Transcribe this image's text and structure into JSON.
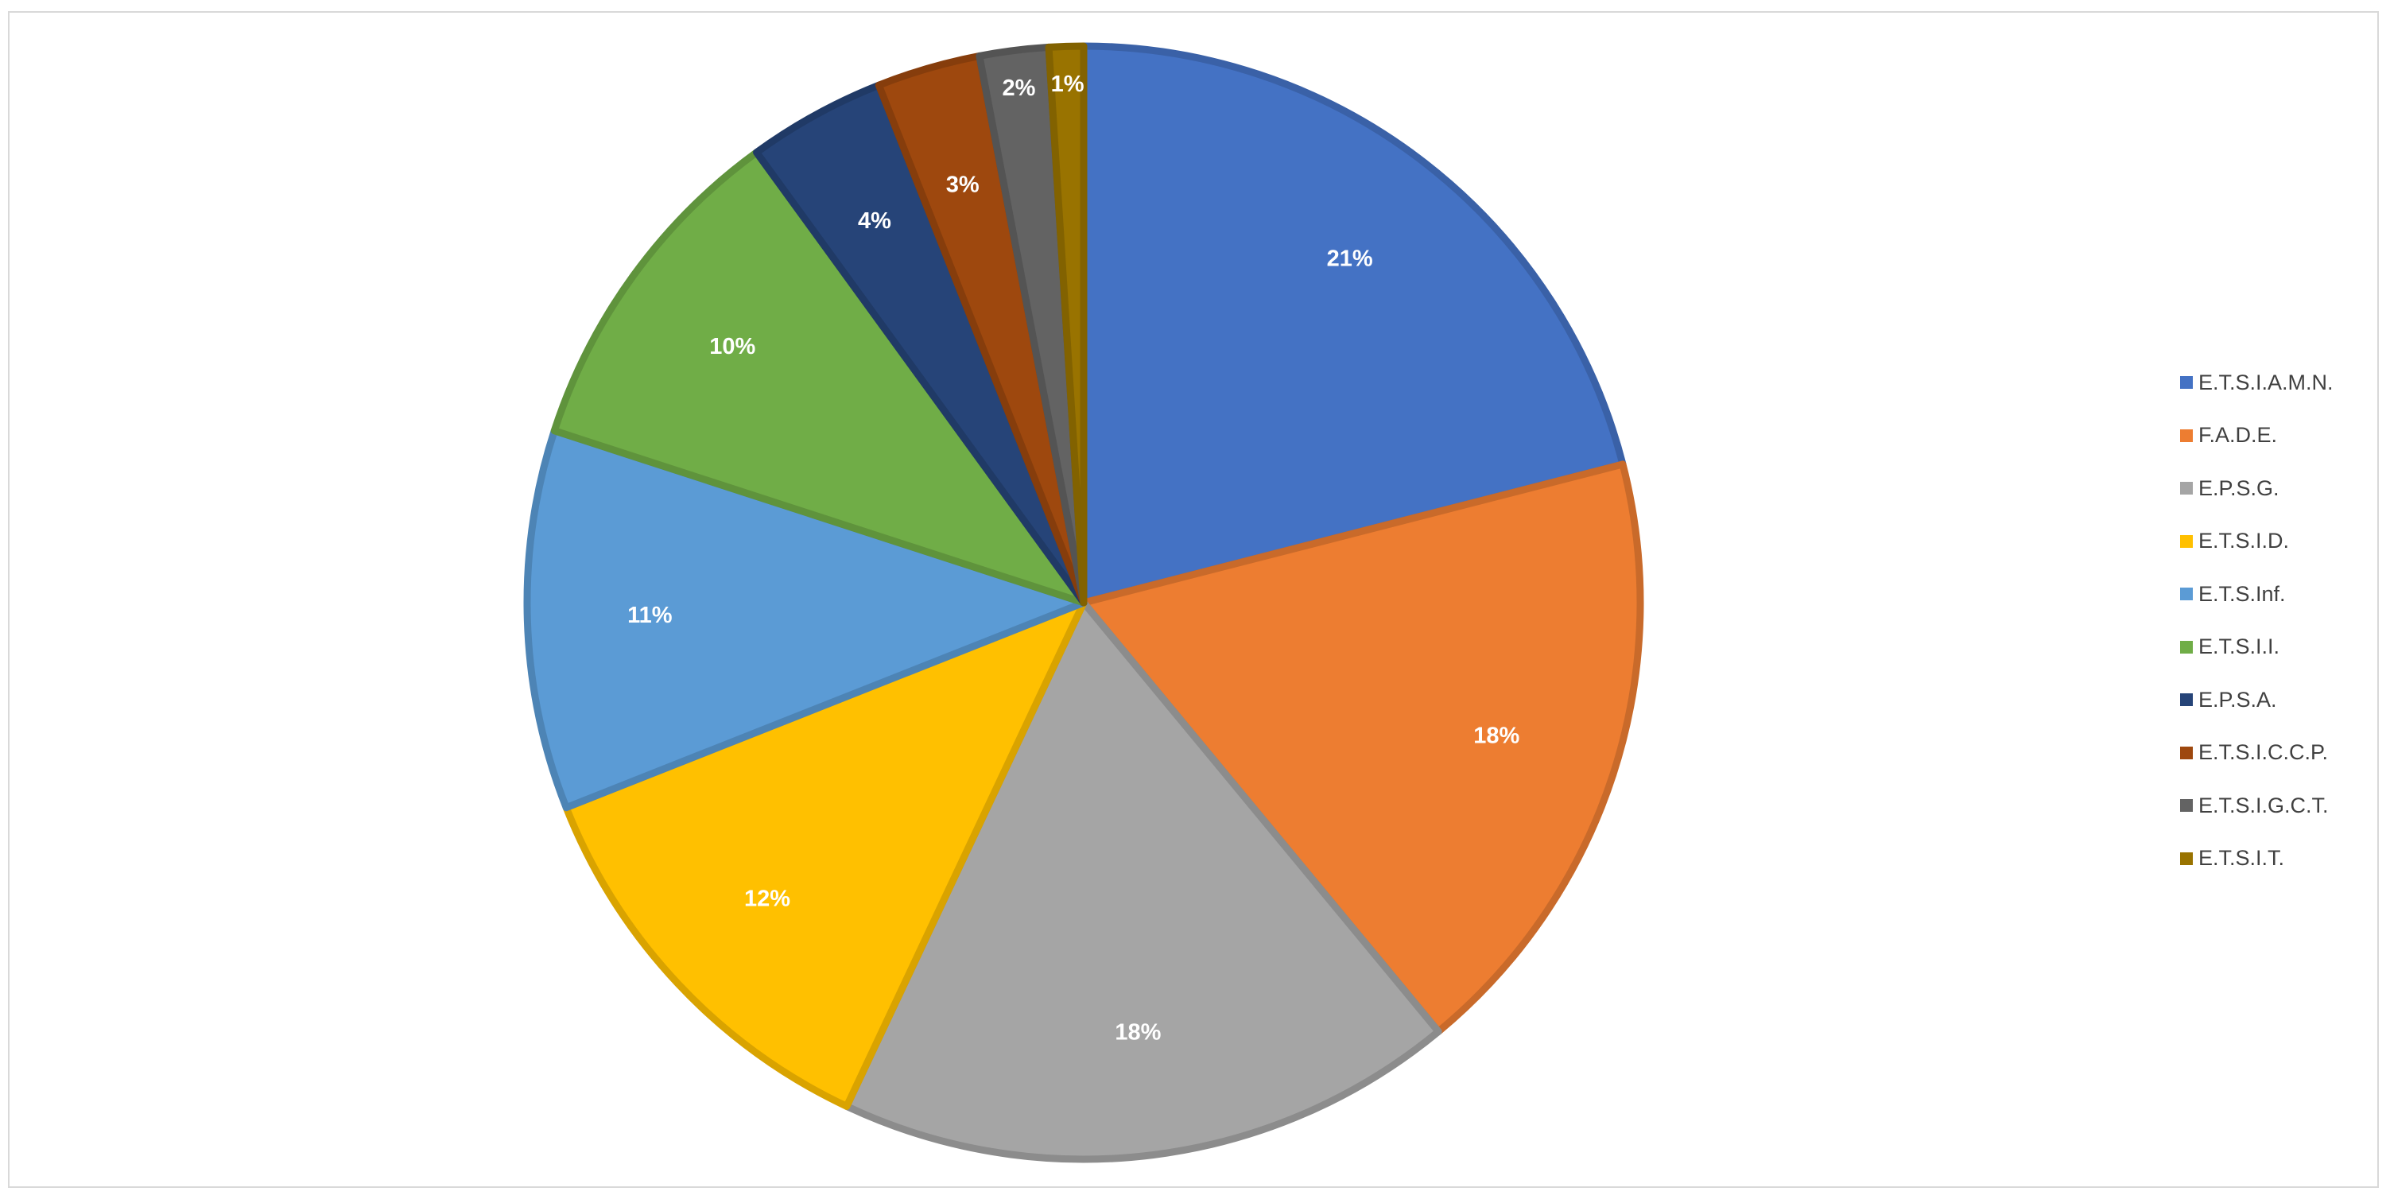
{
  "chart_data": {
    "type": "pie",
    "title": "",
    "legend_position": "right",
    "slices": [
      {
        "name": "E.T.S.I.A.M.N.",
        "value": 21,
        "label": "21%",
        "color": "#4472C4"
      },
      {
        "name": "F.A.D.E.",
        "value": 18,
        "label": "18%",
        "color": "#ED7D31"
      },
      {
        "name": "E.P.S.G.",
        "value": 18,
        "label": "18%",
        "color": "#A5A5A5"
      },
      {
        "name": "E.T.S.I.D.",
        "value": 12,
        "label": "12%",
        "color": "#FFC000"
      },
      {
        "name": "E.T.S.Inf.",
        "value": 11,
        "label": "11%",
        "color": "#5B9BD5"
      },
      {
        "name": "E.T.S.I.I.",
        "value": 10,
        "label": "10%",
        "color": "#70AD47"
      },
      {
        "name": "E.P.S.A.",
        "value": 4,
        "label": "4%",
        "color": "#264478"
      },
      {
        "name": "E.T.S.I.C.C.P.",
        "value": 3,
        "label": "3%",
        "color": "#9E480E"
      },
      {
        "name": "E.T.S.I.G.C.T.",
        "value": 2,
        "label": "2%",
        "color": "#636363"
      },
      {
        "name": "E.T.S.I.T.",
        "value": 1,
        "label": "1%",
        "color": "#997300"
      }
    ]
  }
}
